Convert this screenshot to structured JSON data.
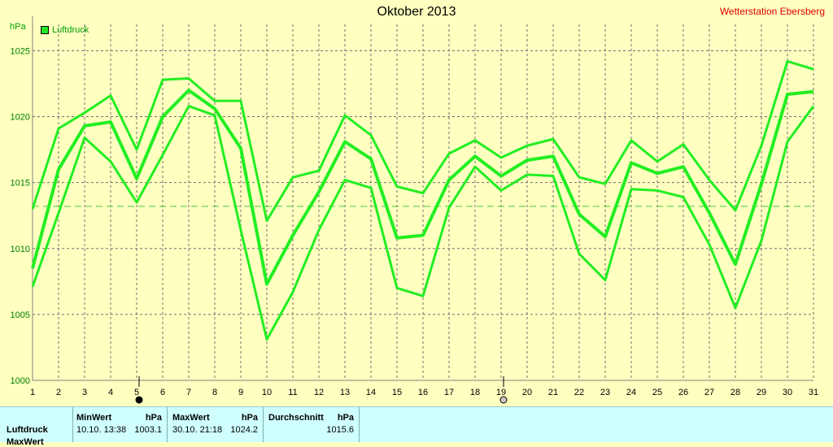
{
  "header": {
    "title": "Oktober 2013",
    "station": "Wetterstation Ebersberg",
    "unit": "hPa",
    "legend_label": "Luftdruck"
  },
  "chart_data": {
    "type": "line",
    "title": "Oktober 2013",
    "ylabel": "hPa",
    "xlabel": "",
    "ylim": [
      1000,
      1027
    ],
    "xlim": [
      1,
      31
    ],
    "yticks": [
      1000,
      1005,
      1010,
      1015,
      1020,
      1025
    ],
    "x": [
      1,
      2,
      3,
      4,
      5,
      6,
      7,
      8,
      9,
      10,
      11,
      12,
      13,
      14,
      15,
      16,
      17,
      18,
      19,
      20,
      21,
      22,
      23,
      24,
      25,
      26,
      27,
      28,
      29,
      30,
      31
    ],
    "series": [
      {
        "name": "Luftdruck",
        "values": [
          1008.5,
          1016.0,
          1019.3,
          1019.6,
          1015.3,
          1020.0,
          1022.0,
          1020.6,
          1017.6,
          1007.3,
          1011.0,
          1014.3,
          1018.1,
          1016.8,
          1010.8,
          1011.0,
          1015.2,
          1017.0,
          1015.5,
          1016.7,
          1017.0,
          1012.6,
          1010.9,
          1016.5,
          1015.7,
          1016.2,
          1012.7,
          1008.8,
          1014.9,
          1021.7,
          1021.9
        ]
      },
      {
        "values": [
          1013.0,
          1019.1,
          1020.3,
          1021.6,
          1017.5,
          1022.8,
          1022.9,
          1021.2,
          1021.2,
          1012.1,
          1015.4,
          1015.9,
          1020.1,
          1018.6,
          1014.7,
          1014.2,
          1017.2,
          1018.2,
          1016.9,
          1017.8,
          1018.3,
          1015.4,
          1014.9,
          1018.2,
          1016.6,
          1017.9,
          1015.2,
          1012.9,
          1017.8,
          1024.2,
          1023.6
        ]
      },
      {
        "values": [
          1007.1,
          1012.7,
          1018.4,
          1016.6,
          1013.5,
          1017.1,
          1020.8,
          1020.1,
          1011.4,
          1003.1,
          1006.7,
          1011.4,
          1015.2,
          1014.6,
          1007.0,
          1006.4,
          1013.1,
          1016.2,
          1014.4,
          1015.6,
          1015.5,
          1009.6,
          1007.6,
          1014.5,
          1014.4,
          1013.9,
          1010.3,
          1005.5,
          1010.6,
          1018.1,
          1020.8
        ]
      }
    ],
    "average_line": 1013.2,
    "grid": true,
    "legend": "top-left",
    "markers": [
      {
        "x": 5,
        "style": "filled"
      },
      {
        "x": 19,
        "style": "hollow"
      }
    ],
    "colors": {
      "line": "#22EE22",
      "average": "#44CC44",
      "grid": "#707070",
      "background": "#FFFFC0"
    }
  },
  "stats": {
    "row_labels": [
      "Luftdruck",
      "MaxWert"
    ],
    "min": {
      "header": "MinWert",
      "unit": "hPa",
      "datetime": "10.10.  13:38",
      "value": "1003.1"
    },
    "max": {
      "header": "MaxWert",
      "unit": "hPa",
      "datetime": "30.10.  21:18",
      "value": "1024.2"
    },
    "avg": {
      "header": "Durchschnitt",
      "unit": "hPa",
      "value": "1015.6"
    }
  }
}
